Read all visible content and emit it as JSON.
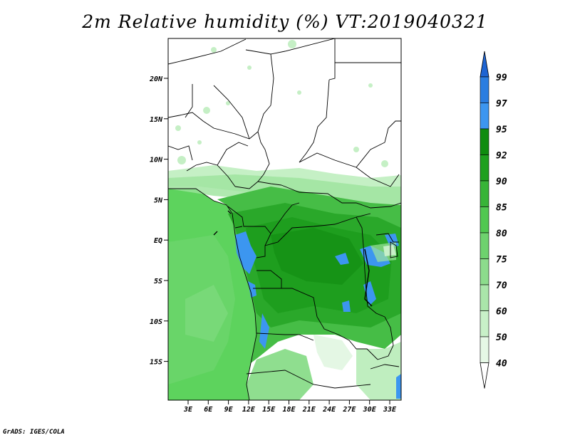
{
  "title": "2m Relative humidity (%) VT:2019040321",
  "credit": "GrADS: IGES/COLA",
  "map": {
    "lat_labels": [
      "20N",
      "15N",
      "10N",
      "5N",
      "EQ",
      "5S",
      "10S",
      "15S"
    ],
    "lon_labels": [
      "3E",
      "6E",
      "9E",
      "12E",
      "15E",
      "18E",
      "21E",
      "24E",
      "27E",
      "30E",
      "33E"
    ]
  },
  "colorbar": {
    "labels": [
      "99",
      "97",
      "95",
      "92",
      "90",
      "85",
      "80",
      "75",
      "70",
      "60",
      "50",
      "40"
    ],
    "colors": [
      "#1e64d2",
      "#2a7de0",
      "#3c96f0",
      "#0f8c0f",
      "#1ea01e",
      "#37b437",
      "#50c850",
      "#6ed26e",
      "#8cdc8c",
      "#aae6aa",
      "#c8f0c8",
      "#e6f8e6",
      "#ffffff"
    ]
  },
  "palette": {
    "ocean": "#5dd35d",
    "ocean_light": "#78d978",
    "land_dense": "#1ea01e",
    "land_mid": "#4cc44c",
    "wet_blue": "#3c96f0",
    "dry_white": "#ffffff"
  }
}
